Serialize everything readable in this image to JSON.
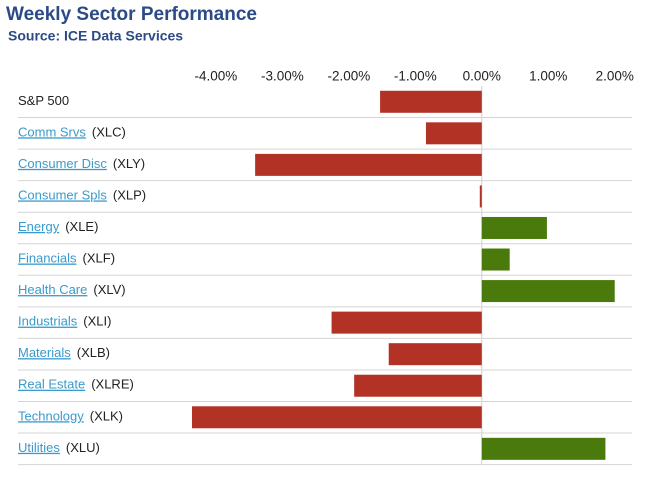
{
  "chart_data": {
    "type": "bar",
    "orientation": "horizontal",
    "title": "Weekly Sector Performance",
    "subtitle": "Source: ICE Data Services",
    "categories": [
      "S&P 500",
      "Comm Srvs",
      "Consumer Disc",
      "Consumer Spls",
      "Energy",
      "Financials",
      "Health Care",
      "Industrials",
      "Materials",
      "Real Estate",
      "Technology",
      "Utilities"
    ],
    "tickers": [
      null,
      "(XLC)",
      "(XLY)",
      "(XLP)",
      "(XLE)",
      "(XLF)",
      "(XLV)",
      "(XLI)",
      "(XLB)",
      "(XLRE)",
      "(XLK)",
      "(XLU)"
    ],
    "values": [
      -1.53,
      -0.84,
      -3.41,
      -0.03,
      0.98,
      0.42,
      2.0,
      -2.26,
      -1.4,
      -1.92,
      -4.36,
      1.86
    ],
    "positive_color": "#4a7a0c",
    "negative_color": "#b23326",
    "xlim": [
      -4.45,
      2.26
    ],
    "xticks": [
      {
        "value": -4,
        "label": "-4.00%"
      },
      {
        "value": -3,
        "label": "-3.00%"
      },
      {
        "value": -2,
        "label": "-2.00%"
      },
      {
        "value": -1,
        "label": "-1.00%"
      },
      {
        "value": 0,
        "label": "0.00%"
      },
      {
        "value": 1,
        "label": "1.00%"
      },
      {
        "value": 2,
        "label": "2.00%"
      }
    ]
  }
}
